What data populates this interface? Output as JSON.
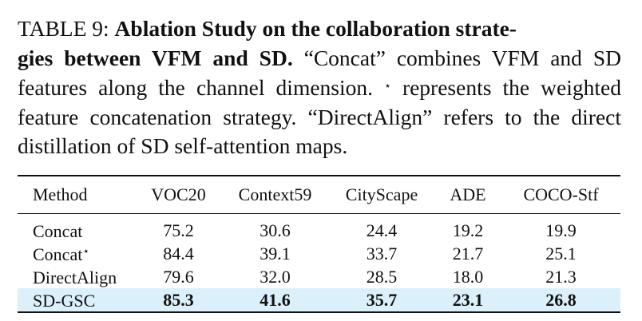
{
  "caption": {
    "label": "TABLE 9: ",
    "bold_text": "Ablation Study on the collaboration strategies between VFM and SD.",
    "bold_part1": "Ablation Study on the collaboration strate-",
    "bold_part2": "gies between VFM and SD.",
    "desc_part1": " “Concat” combines VFM and SD features along the channel dimension. ",
    "star": "⋆",
    "desc_part2": " represents the weighted feature concatenation strategy. “DirectAlign” refers to the direct distillation of SD self-attention maps."
  },
  "table": {
    "columns": [
      "Method",
      "VOC20",
      "Context59",
      "CityScape",
      "ADE",
      "COCO-Stf"
    ],
    "rows": [
      {
        "method": "Concat",
        "star": "",
        "values": [
          "75.2",
          "30.6",
          "24.4",
          "19.2",
          "19.9"
        ]
      },
      {
        "method": "Concat",
        "star": "⋆",
        "values": [
          "84.4",
          "39.1",
          "33.7",
          "21.7",
          "25.1"
        ]
      },
      {
        "method": "DirectAlign",
        "star": "",
        "values": [
          "79.6",
          "32.0",
          "28.5",
          "18.0",
          "21.3"
        ]
      },
      {
        "method": "SD-GSC",
        "star": "",
        "values": [
          "85.3",
          "41.6",
          "35.7",
          "23.1",
          "26.8"
        ]
      }
    ],
    "highlight_color": "#dbf0fa"
  }
}
